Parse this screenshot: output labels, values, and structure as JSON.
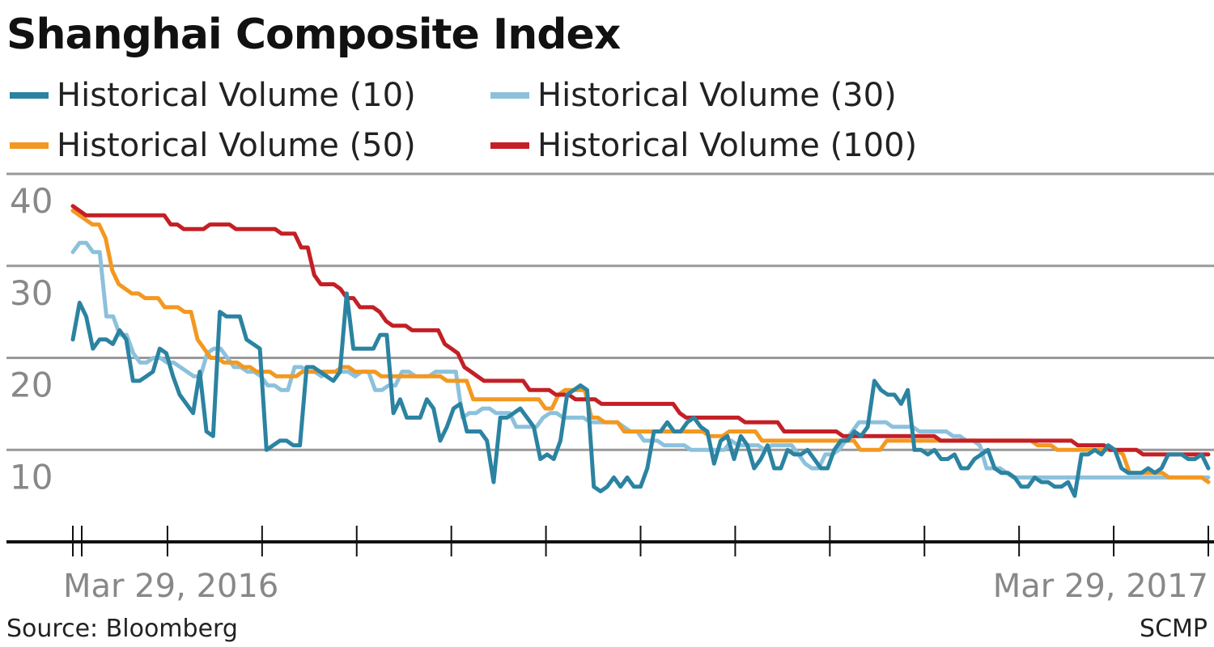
{
  "title": "Shanghai Composite Index",
  "source": "Source: Bloomberg",
  "credit": "SCMP",
  "colors": {
    "hv10": "#2b83a1",
    "hv30": "#8cc1dc",
    "hv50": "#f39820",
    "hv100": "#c41f26",
    "grid": "#999999",
    "axis": "#111111",
    "tick_text": "#888888"
  },
  "chart_data": {
    "type": "line",
    "title": "Shanghai Composite Index",
    "xlabel": "",
    "ylabel": "",
    "x_start_label": "Mar 29, 2016",
    "x_end_label": "Mar 29, 2017",
    "yticks": [
      "40",
      "30",
      "20",
      "10"
    ],
    "ylim": [
      0,
      40
    ],
    "grid": true,
    "legend": "top",
    "series": [
      {
        "name": "Historical Volume (10)",
        "color": "#2b83a1",
        "values": [
          22,
          26,
          24.5,
          21,
          22,
          22,
          21.5,
          23,
          22,
          17.5,
          17.5,
          18,
          18.5,
          21,
          20.5,
          18,
          16,
          15,
          14,
          18.5,
          12,
          11.5,
          25,
          24.5,
          24.5,
          24.5,
          22,
          21.5,
          21,
          10,
          10.5,
          11,
          11,
          10.5,
          10.5,
          19,
          19,
          18.5,
          18,
          17.5,
          18.5,
          27,
          21,
          21,
          21,
          21,
          22.5,
          22.5,
          14,
          15.5,
          13.5,
          13.5,
          13.5,
          15.5,
          14.5,
          11,
          12.5,
          14.5,
          15,
          12,
          12,
          12,
          11,
          6.5,
          13.5,
          13.5,
          14,
          14.5,
          13.5,
          12.5,
          9,
          9.5,
          9,
          11,
          16,
          16.5,
          17,
          16.5,
          6,
          5.5,
          6,
          7,
          6,
          7,
          6,
          6,
          8,
          12,
          12,
          13,
          12,
          12,
          13,
          13.5,
          12.5,
          12,
          8.5,
          11,
          11.5,
          9,
          11.5,
          10.5,
          8,
          9,
          10.5,
          8,
          8,
          10,
          9.5,
          9.5,
          10,
          9,
          8,
          8,
          10,
          11,
          11,
          12,
          11.5,
          12.5,
          17.5,
          16.5,
          16,
          16,
          15,
          16.5,
          10,
          10,
          9.5,
          10,
          9,
          9,
          9.5,
          8,
          8,
          9,
          9.5,
          10,
          8,
          7.5,
          7.5,
          7,
          6,
          6,
          7,
          6.5,
          6.5,
          6,
          6,
          6.5,
          5,
          9.5,
          9.5,
          10,
          9.5,
          10.5,
          10,
          8,
          7.5,
          7.5,
          7.5,
          8,
          7.5,
          8,
          9.5,
          9.5,
          9.5,
          9,
          9,
          9.5,
          8
        ]
      },
      {
        "name": "Historical Volume (30)",
        "color": "#8cc1dc",
        "values": [
          31.5,
          32.5,
          32.5,
          31.5,
          31.5,
          24.5,
          24.5,
          22.5,
          22.5,
          20.5,
          19.5,
          19.5,
          20,
          20,
          19.5,
          19.5,
          19,
          18.5,
          18,
          18,
          20.5,
          21,
          21,
          20,
          19,
          19,
          18.5,
          18.5,
          18,
          17,
          17,
          16.5,
          16.5,
          19,
          19,
          18.5,
          18.5,
          18,
          18.5,
          18.5,
          18.5,
          18.5,
          18,
          18.5,
          18.5,
          16.5,
          16.5,
          17,
          17,
          18.5,
          18.5,
          18,
          18,
          18,
          18.5,
          18.5,
          18.5,
          18.5,
          13.5,
          14,
          14,
          14.5,
          14.5,
          14,
          14,
          14,
          12.5,
          12.5,
          12.5,
          12.5,
          13.5,
          14,
          14,
          13.5,
          13.5,
          13.5,
          13.5,
          13,
          13,
          13,
          13,
          13,
          12.5,
          12,
          12,
          11,
          11,
          11,
          10.5,
          10.5,
          10.5,
          10.5,
          10,
          10,
          10,
          10,
          10,
          10,
          11,
          10.5,
          10.5,
          10.5,
          10.5,
          10,
          10.5,
          10.5,
          10.5,
          10.5,
          9.5,
          8.5,
          8,
          8,
          9.5,
          9.5,
          10,
          11,
          12,
          13,
          13,
          13,
          13,
          13,
          12.5,
          12.5,
          12.5,
          12.5,
          12,
          12,
          12,
          12,
          12,
          11.5,
          11.5,
          11,
          11,
          10.5,
          8,
          8,
          8,
          7.5,
          7,
          7,
          7,
          7,
          7,
          7,
          7,
          7,
          7,
          7,
          7,
          7,
          7,
          7,
          7,
          7,
          7,
          7,
          7,
          7,
          7,
          7,
          7,
          7,
          7,
          7,
          7,
          7,
          7,
          7
        ]
      },
      {
        "name": "Historical Volume (50)",
        "color": "#f39820",
        "values": [
          36,
          35.5,
          35,
          34.5,
          34.5,
          33,
          29.5,
          28,
          27.5,
          27,
          27,
          26.5,
          26.5,
          26.5,
          25.5,
          25.5,
          25.5,
          25,
          25,
          22,
          21,
          20,
          20,
          19.5,
          19.5,
          19.5,
          19,
          19,
          18.5,
          18.5,
          18.5,
          18,
          18,
          18,
          18,
          18.5,
          18.5,
          18.5,
          18.5,
          18.5,
          18.5,
          19,
          19,
          18.5,
          18.5,
          18.5,
          18.5,
          18,
          18,
          18,
          18,
          18,
          18,
          18,
          18,
          18,
          18,
          17.5,
          17.5,
          17.5,
          17.5,
          15.5,
          15.5,
          15.5,
          15.5,
          15.5,
          15.5,
          15.5,
          15.5,
          15.5,
          15.5,
          15.5,
          14.5,
          14.5,
          16,
          16.5,
          16.5,
          16.5,
          16.5,
          13.5,
          13.5,
          13,
          13,
          13,
          12,
          12,
          12,
          12,
          12,
          12,
          12,
          12,
          12,
          12,
          12,
          12,
          12,
          11.5,
          11.5,
          11.5,
          12,
          12,
          12,
          12,
          12,
          11,
          11,
          11,
          11,
          11,
          11,
          11,
          11,
          11,
          11,
          11,
          11,
          11,
          11,
          11,
          10,
          10,
          10,
          10,
          11,
          11,
          11,
          11,
          11,
          11,
          11,
          11,
          11,
          11,
          11,
          11,
          11,
          11,
          11,
          11,
          11,
          11,
          11,
          11,
          11,
          11,
          11,
          10.5,
          10.5,
          10.5,
          10,
          10,
          10,
          10,
          10,
          10,
          10,
          10,
          10,
          10,
          9.5,
          7.5,
          7.5,
          7.5,
          7.5,
          7.5,
          7.5,
          7,
          7,
          7,
          7,
          7,
          7,
          6.5
        ]
      },
      {
        "name": "Historical Volume (100)",
        "color": "#c41f26",
        "values": [
          36.5,
          36,
          35.5,
          35.5,
          35.5,
          35.5,
          35.5,
          35.5,
          35.5,
          35.5,
          35.5,
          35.5,
          35.5,
          35.5,
          35.5,
          34.5,
          34.5,
          34,
          34,
          34,
          34,
          34.5,
          34.5,
          34.5,
          34.5,
          34,
          34,
          34,
          34,
          34,
          34,
          34,
          33.5,
          33.5,
          33.5,
          32,
          32,
          29,
          28,
          28,
          28,
          27.5,
          26.5,
          26.5,
          25.5,
          25.5,
          25.5,
          25,
          24,
          23.5,
          23.5,
          23.5,
          23,
          23,
          23,
          23,
          23,
          21.5,
          21,
          20.5,
          19,
          18.5,
          18,
          17.5,
          17.5,
          17.5,
          17.5,
          17.5,
          17.5,
          17.5,
          16.5,
          16.5,
          16.5,
          16.5,
          16,
          16,
          16,
          15.5,
          15.5,
          15.5,
          15.5,
          15,
          15,
          15,
          15,
          15,
          15,
          15,
          15,
          15,
          15,
          15,
          15,
          14,
          13.5,
          13.5,
          13.5,
          13.5,
          13.5,
          13.5,
          13.5,
          13.5,
          13.5,
          13,
          13,
          13,
          13,
          13,
          13,
          12,
          12,
          12,
          12,
          12,
          12,
          12,
          12,
          12,
          11.5,
          11.5,
          11.5,
          11.5,
          11.5,
          11.5,
          11.5,
          11.5,
          11.5,
          11.5,
          11.5,
          11.5,
          11.5,
          11.5,
          11.5,
          11,
          11,
          11,
          11,
          11,
          11,
          11,
          11,
          11,
          11,
          11,
          11,
          11,
          11,
          11,
          11,
          11,
          11,
          11,
          11,
          11,
          10.5,
          10.5,
          10.5,
          10.5,
          10.5,
          10,
          10,
          10,
          10,
          10,
          9.5,
          9.5,
          9.5,
          9.5,
          9.5,
          9.5,
          9.5,
          9.5,
          9.5,
          9.5,
          9.5
        ]
      }
    ]
  }
}
